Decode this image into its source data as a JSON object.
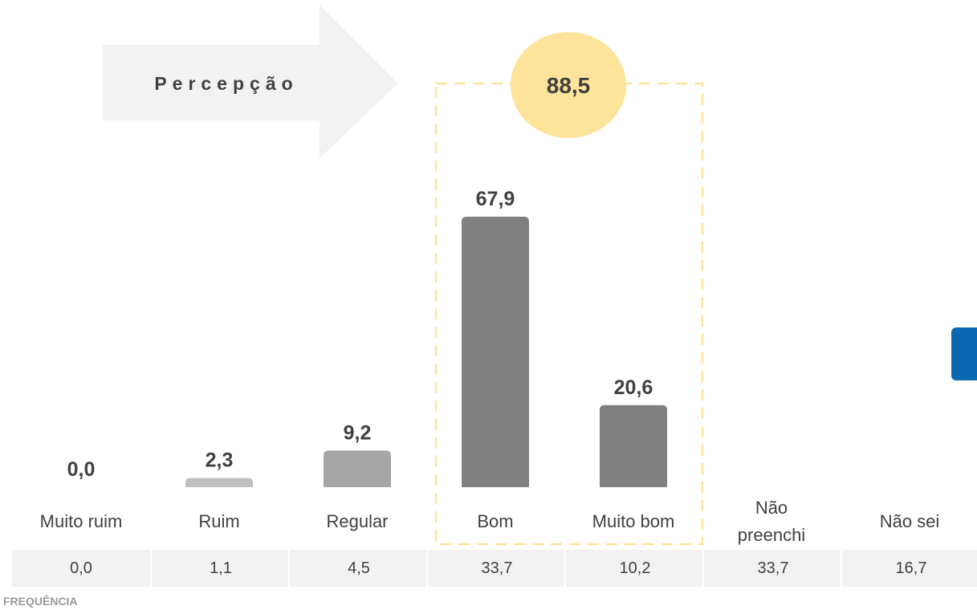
{
  "perception_label": "Percepção",
  "perception_total": "88,5",
  "frequency_label": "FREQUÊNCIA",
  "chart_data": {
    "type": "bar",
    "title": "",
    "categories": [
      "Muito ruim",
      "Ruim",
      "Regular",
      "Bom",
      "Muito bom",
      "Não preenchi",
      "Não sei"
    ],
    "values": [
      0.0,
      2.3,
      9.2,
      67.9,
      20.6,
      null,
      null
    ],
    "value_labels": [
      "0,0",
      "2,3",
      "9,2",
      "67,9",
      "20,6",
      "",
      ""
    ],
    "frequency_values": [
      "0,0",
      "1,1",
      "4,5",
      "33,7",
      "10,2",
      "33,7",
      "16,7"
    ],
    "highlighted_categories": [
      "Bom",
      "Muito bom"
    ],
    "colors": [
      "#c8c8c8",
      "#bfbfbf",
      "#a6a6a6",
      "#808080",
      "#808080"
    ],
    "ylim": [
      0,
      67.9
    ],
    "grid": false,
    "legend": "none"
  },
  "colors": {
    "arrow": "#f2f2f2",
    "highlight_circle": "#fde49a",
    "highlight_border": "#fde49a",
    "side_tab": "#0b69b2"
  }
}
